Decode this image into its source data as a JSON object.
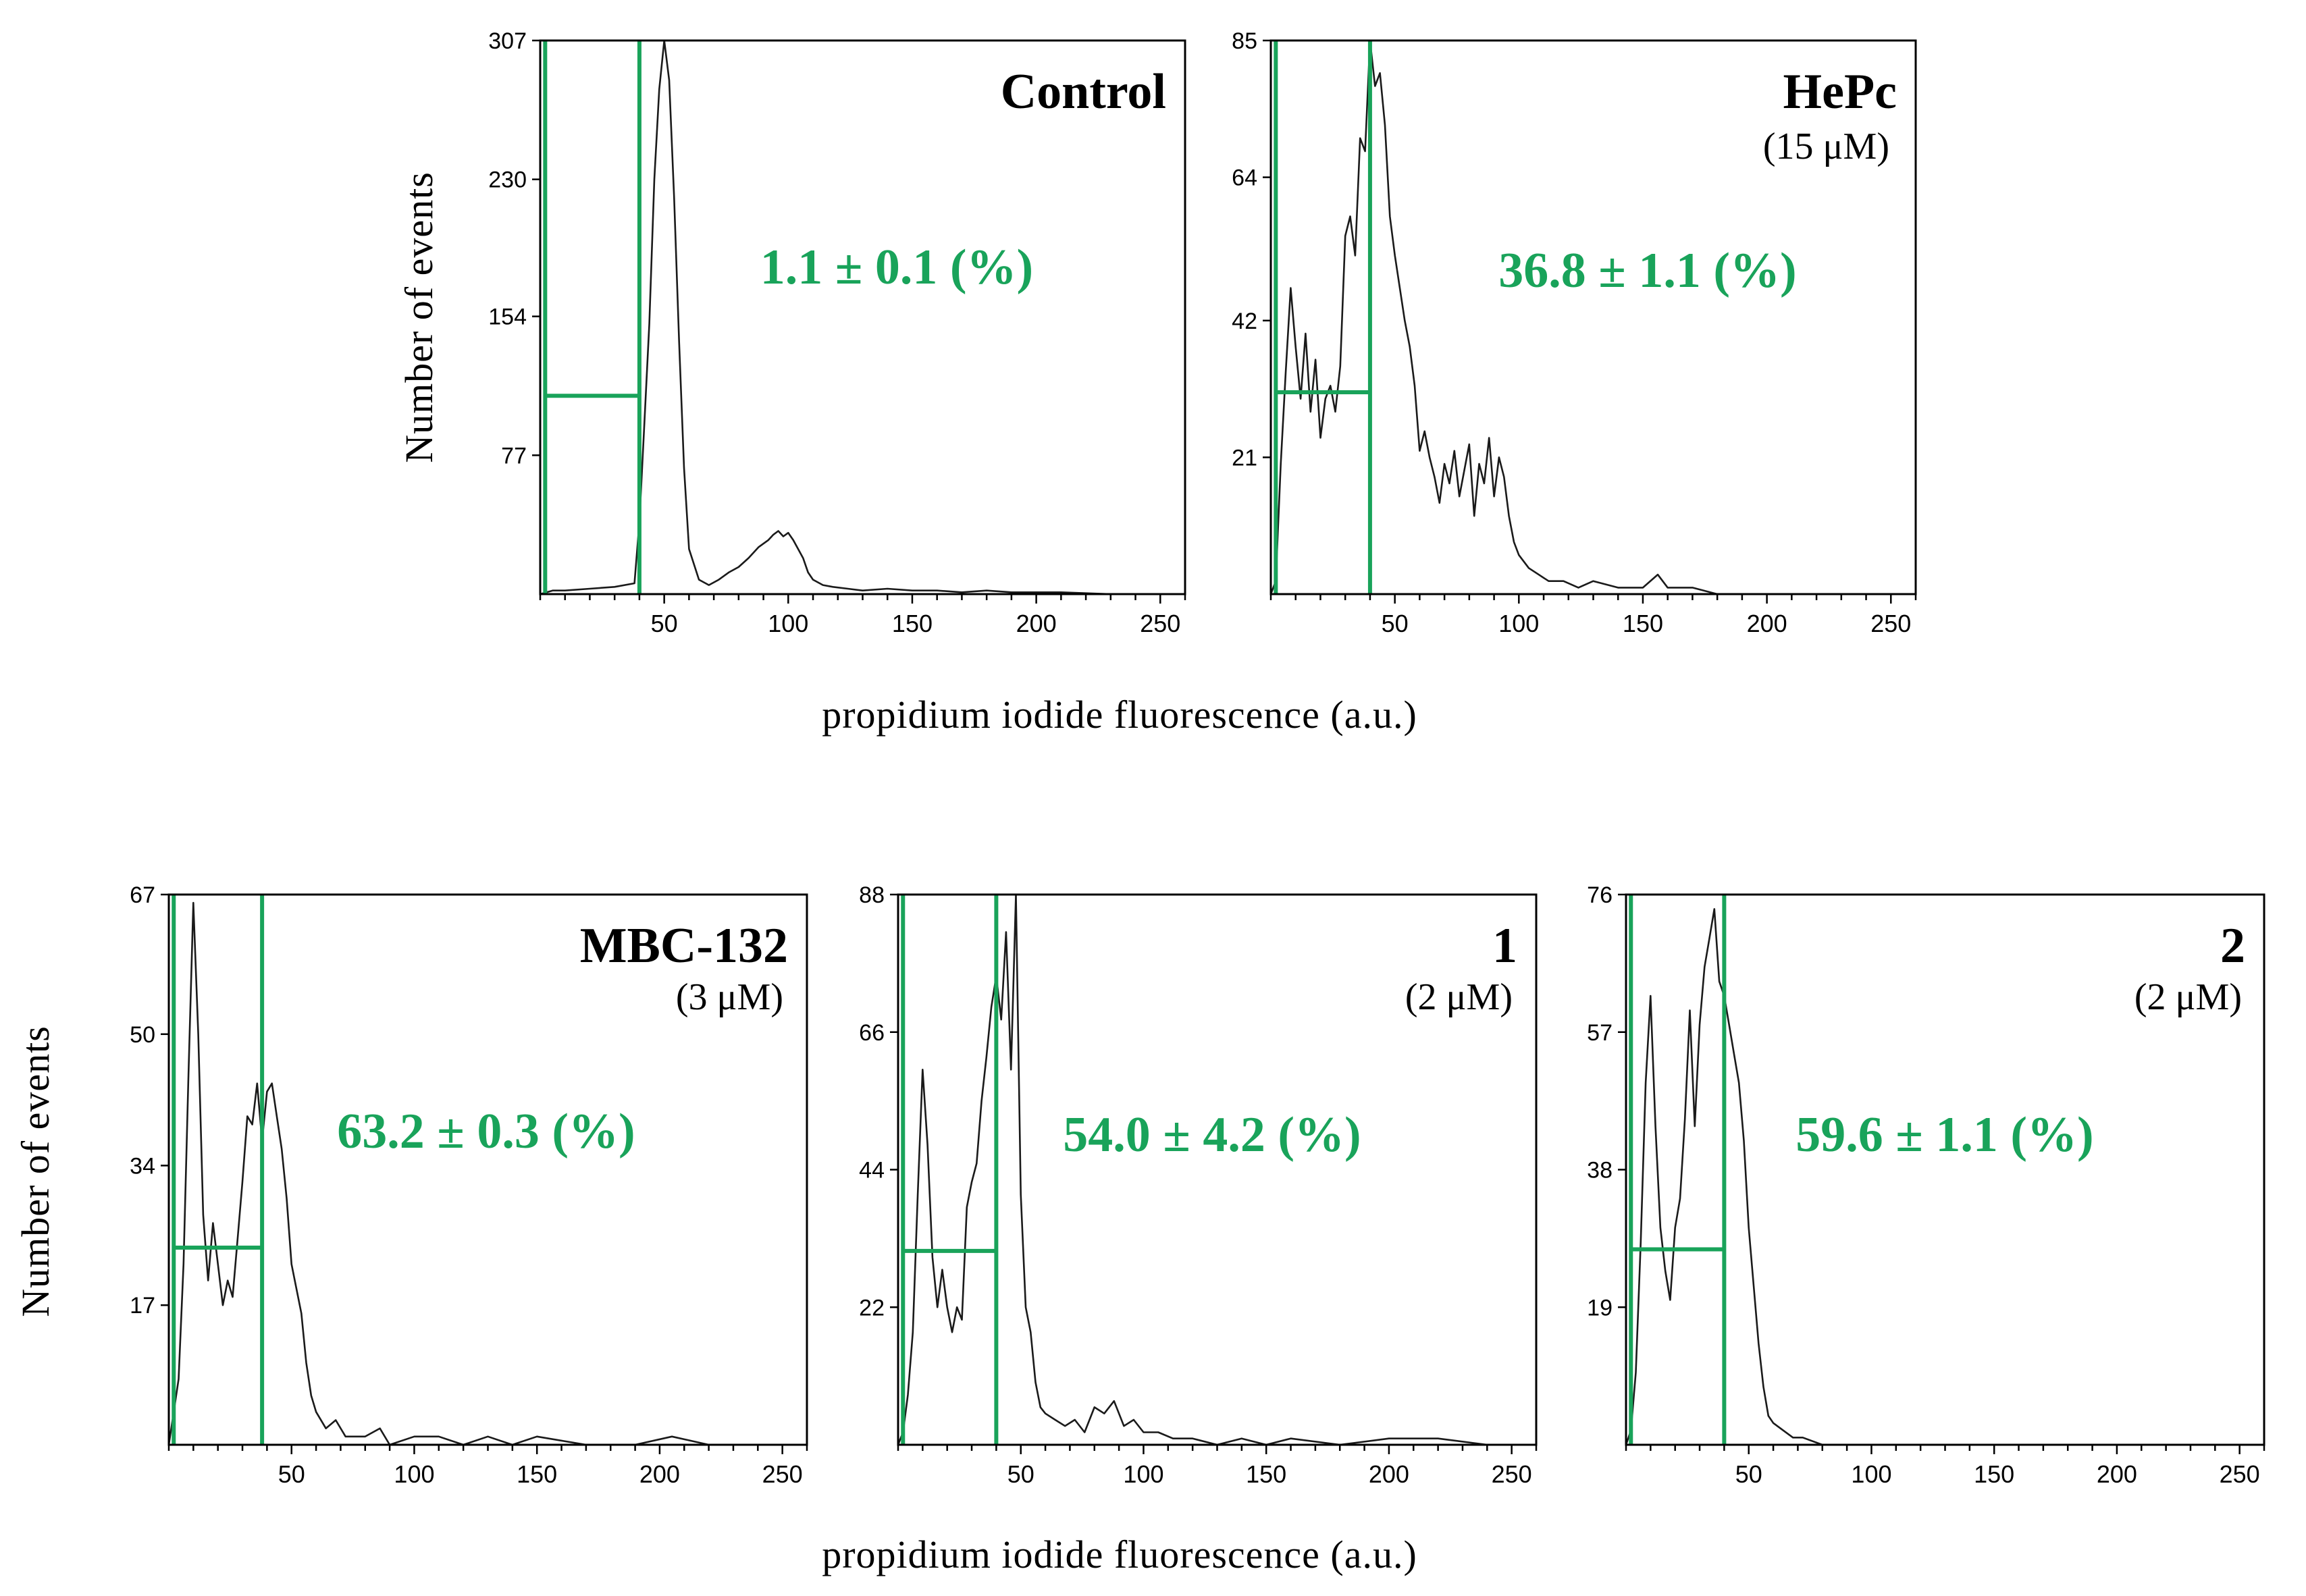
{
  "x_axis_label": "propidium   iodide   fluorescence  (a.u.)",
  "colors": {
    "gate": "#19a35a",
    "trace": "#1a1a1a",
    "frame": "#000000"
  },
  "chart_data": [
    {
      "id": "control",
      "type": "line",
      "title": "Control",
      "concentration": "",
      "percentage": "1.1 ± 0.1 (%)",
      "ylabel": "Number  of  events",
      "xlim": [
        0,
        260
      ],
      "ylim": [
        0,
        307
      ],
      "x_ticks": [
        50,
        100,
        150,
        200,
        250
      ],
      "y_ticks": [
        77,
        154,
        230,
        307
      ],
      "gate": {
        "x_start": 2,
        "x_end": 40,
        "marker_level": 110
      },
      "histogram": {
        "x": [
          0,
          5,
          10,
          20,
          30,
          38,
          40,
          42,
          44,
          46,
          48,
          50,
          52,
          54,
          56,
          58,
          60,
          64,
          68,
          72,
          76,
          80,
          84,
          88,
          90,
          92,
          94,
          96,
          98,
          100,
          102,
          104,
          106,
          108,
          110,
          114,
          118,
          124,
          130,
          140,
          150,
          160,
          170,
          180,
          190,
          200,
          210,
          230
        ],
        "y": [
          0,
          2,
          2,
          3,
          4,
          6,
          40,
          95,
          150,
          230,
          280,
          307,
          285,
          220,
          140,
          70,
          25,
          8,
          5,
          8,
          12,
          15,
          20,
          26,
          28,
          30,
          33,
          35,
          32,
          34,
          30,
          25,
          20,
          12,
          8,
          5,
          4,
          3,
          2,
          3,
          2,
          2,
          1,
          2,
          1,
          1,
          1,
          0
        ]
      }
    },
    {
      "id": "hepc",
      "type": "line",
      "title": "HePc",
      "concentration": "(15 μM)",
      "percentage": "36.8 ± 1.1 (%)",
      "ylabel": "",
      "xlim": [
        0,
        260
      ],
      "ylim": [
        0,
        85
      ],
      "x_ticks": [
        50,
        100,
        150,
        200,
        250
      ],
      "y_ticks": [
        21,
        42,
        64,
        85
      ],
      "gate": {
        "x_start": 2,
        "x_end": 40,
        "marker_level": 31
      },
      "histogram": {
        "x": [
          0,
          2,
          4,
          6,
          8,
          10,
          12,
          14,
          16,
          18,
          20,
          22,
          24,
          26,
          28,
          30,
          32,
          34,
          36,
          38,
          40,
          42,
          44,
          46,
          48,
          50,
          52,
          54,
          56,
          58,
          60,
          62,
          64,
          66,
          68,
          70,
          72,
          74,
          76,
          78,
          80,
          82,
          84,
          86,
          88,
          90,
          92,
          94,
          96,
          98,
          100,
          104,
          108,
          112,
          118,
          124,
          130,
          140,
          150,
          156,
          160,
          170,
          180,
          190
        ],
        "y": [
          0,
          2,
          20,
          34,
          47,
          38,
          30,
          40,
          28,
          36,
          24,
          30,
          32,
          28,
          35,
          55,
          58,
          52,
          70,
          68,
          85,
          78,
          80,
          72,
          58,
          52,
          47,
          42,
          38,
          32,
          22,
          25,
          21,
          18,
          14,
          20,
          17,
          22,
          15,
          19,
          23,
          12,
          20,
          17,
          24,
          15,
          21,
          18,
          12,
          8,
          6,
          4,
          3,
          2,
          2,
          1,
          2,
          1,
          1,
          3,
          1,
          1,
          0,
          0
        ]
      }
    },
    {
      "id": "mbc132",
      "type": "line",
      "title": "MBC-132",
      "concentration": "(3 μM)",
      "percentage": "63.2 ± 0.3 (%)",
      "ylabel": "Number of events",
      "xlim": [
        0,
        260
      ],
      "ylim": [
        0,
        67
      ],
      "x_ticks": [
        50,
        100,
        150,
        200,
        250
      ],
      "y_ticks": [
        17,
        34,
        50,
        67
      ],
      "gate": {
        "x_start": 2,
        "x_end": 38,
        "marker_level": 24
      },
      "histogram": {
        "x": [
          0,
          2,
          4,
          6,
          8,
          10,
          12,
          14,
          16,
          18,
          20,
          22,
          24,
          26,
          28,
          30,
          32,
          34,
          36,
          38,
          40,
          42,
          44,
          46,
          48,
          50,
          52,
          54,
          56,
          58,
          60,
          64,
          68,
          72,
          76,
          80,
          86,
          90,
          100,
          110,
          120,
          130,
          140,
          150,
          170,
          190,
          205,
          220
        ],
        "y": [
          0,
          4,
          8,
          22,
          45,
          66,
          50,
          28,
          20,
          27,
          22,
          17,
          20,
          18,
          25,
          32,
          40,
          39,
          44,
          37,
          43,
          44,
          40,
          36,
          30,
          22,
          19,
          16,
          10,
          6,
          4,
          2,
          3,
          1,
          1,
          1,
          2,
          0,
          1,
          1,
          0,
          1,
          0,
          1,
          0,
          0,
          1,
          0
        ]
      }
    },
    {
      "id": "compound1",
      "type": "line",
      "title": "1",
      "concentration": "(2 μM)",
      "percentage": "54.0 ± 4.2 (%)",
      "ylabel": "",
      "xlim": [
        0,
        260
      ],
      "ylim": [
        0,
        88
      ],
      "x_ticks": [
        50,
        100,
        150,
        200,
        250
      ],
      "y_ticks": [
        22,
        44,
        66,
        88
      ],
      "gate": {
        "x_start": 2,
        "x_end": 40,
        "marker_level": 31
      },
      "histogram": {
        "x": [
          0,
          2,
          4,
          6,
          8,
          10,
          12,
          14,
          16,
          18,
          20,
          22,
          24,
          26,
          28,
          30,
          32,
          34,
          36,
          38,
          40,
          42,
          44,
          46,
          48,
          50,
          52,
          54,
          56,
          58,
          60,
          64,
          68,
          72,
          76,
          80,
          84,
          88,
          92,
          96,
          100,
          106,
          112,
          120,
          130,
          140,
          150,
          160,
          180,
          200,
          220,
          240
        ],
        "y": [
          0,
          2,
          8,
          18,
          40,
          60,
          48,
          30,
          22,
          28,
          22,
          18,
          22,
          20,
          38,
          42,
          45,
          55,
          62,
          70,
          75,
          68,
          82,
          60,
          88,
          40,
          22,
          18,
          10,
          6,
          5,
          4,
          3,
          4,
          2,
          6,
          5,
          7,
          3,
          4,
          2,
          2,
          1,
          1,
          0,
          1,
          0,
          1,
          0,
          1,
          1,
          0
        ]
      }
    },
    {
      "id": "compound2",
      "type": "line",
      "title": "2",
      "concentration": "(2 μM)",
      "percentage": "59.6 ± 1.1 (%)",
      "ylabel": "",
      "xlim": [
        0,
        260
      ],
      "ylim": [
        0,
        76
      ],
      "x_ticks": [
        50,
        100,
        150,
        200,
        250
      ],
      "y_ticks": [
        19,
        38,
        57,
        76
      ],
      "gate": {
        "x_start": 2,
        "x_end": 40,
        "marker_level": 27
      },
      "histogram": {
        "x": [
          0,
          2,
          4,
          6,
          8,
          10,
          12,
          14,
          16,
          18,
          20,
          22,
          24,
          26,
          28,
          30,
          32,
          34,
          36,
          38,
          40,
          42,
          44,
          46,
          48,
          50,
          52,
          54,
          56,
          58,
          60,
          64,
          68,
          72,
          80
        ],
        "y": [
          0,
          2,
          10,
          28,
          50,
          62,
          44,
          30,
          24,
          20,
          30,
          34,
          45,
          60,
          44,
          58,
          66,
          70,
          74,
          64,
          62,
          58,
          54,
          50,
          42,
          30,
          22,
          14,
          8,
          4,
          3,
          2,
          1,
          1,
          0
        ]
      }
    }
  ]
}
